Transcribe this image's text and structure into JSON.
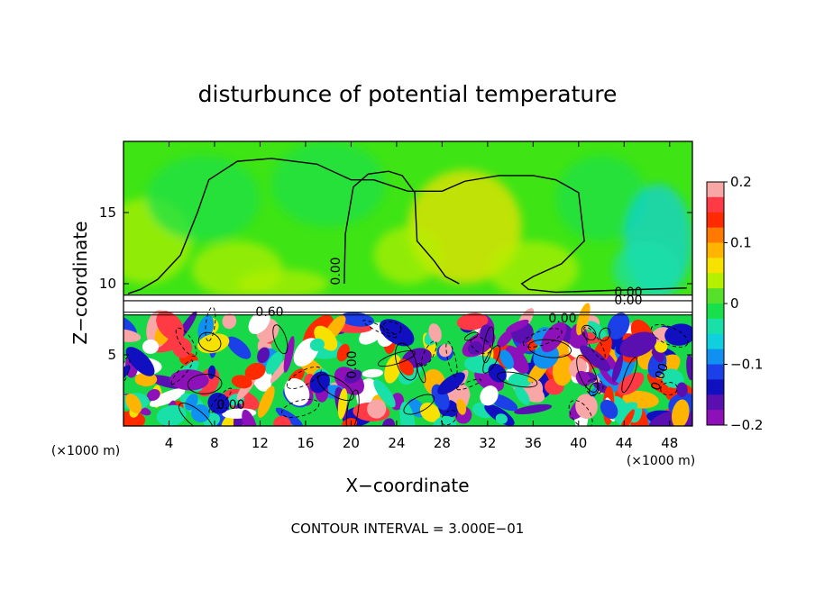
{
  "chart_data": {
    "type": "heatmap",
    "title": "disturbunce of potential temperature",
    "xlabel": "X−coordinate",
    "ylabel": "Z−coordinate",
    "x_unit_left": "(×1000 m)",
    "x_unit_right": "(×1000 m)",
    "xlim": [
      0,
      50
    ],
    "ylim": [
      0,
      20
    ],
    "xticks": [
      4,
      8,
      12,
      16,
      20,
      24,
      28,
      32,
      36,
      40,
      44,
      48
    ],
    "xtick_labels": [
      "4",
      "8",
      "12",
      "16",
      "20",
      "24",
      "28",
      "32",
      "36",
      "40",
      "44",
      "48"
    ],
    "yticks": [
      5,
      10,
      15
    ],
    "ytick_labels": [
      "5",
      "10",
      "15"
    ],
    "colorbar": {
      "range": [
        -0.2,
        0.2
      ],
      "tick_values": [
        0.2,
        0.1,
        0,
        -0.1,
        -0.2
      ],
      "tick_labels": [
        "0.2",
        "0.1",
        "0",
        "−0.1",
        "−0.2"
      ],
      "colors": [
        "#f9a6a6",
        "#ff3a44",
        "#ff2a00",
        "#ff7800",
        "#ffb400",
        "#f7e100",
        "#b4f000",
        "#56e02a",
        "#18e04a",
        "#18e0a8",
        "#10d0e0",
        "#1090f0",
        "#1c40e8",
        "#1010c0",
        "#5a10b0",
        "#8e10b8"
      ]
    },
    "contour_labels": [
      "0.00",
      "0.00",
      "0.00",
      "0.60",
      "0.00",
      "0.00",
      "0.00",
      "0.00",
      "0.00",
      "0.00"
    ],
    "contour_interval_text": "CONTOUR INTERVAL = 3.000E−01",
    "regions": {
      "upper_layer_value": 0.02,
      "lower_layer_range": [
        -0.2,
        0.2
      ],
      "interface_height": 9.2
    }
  }
}
